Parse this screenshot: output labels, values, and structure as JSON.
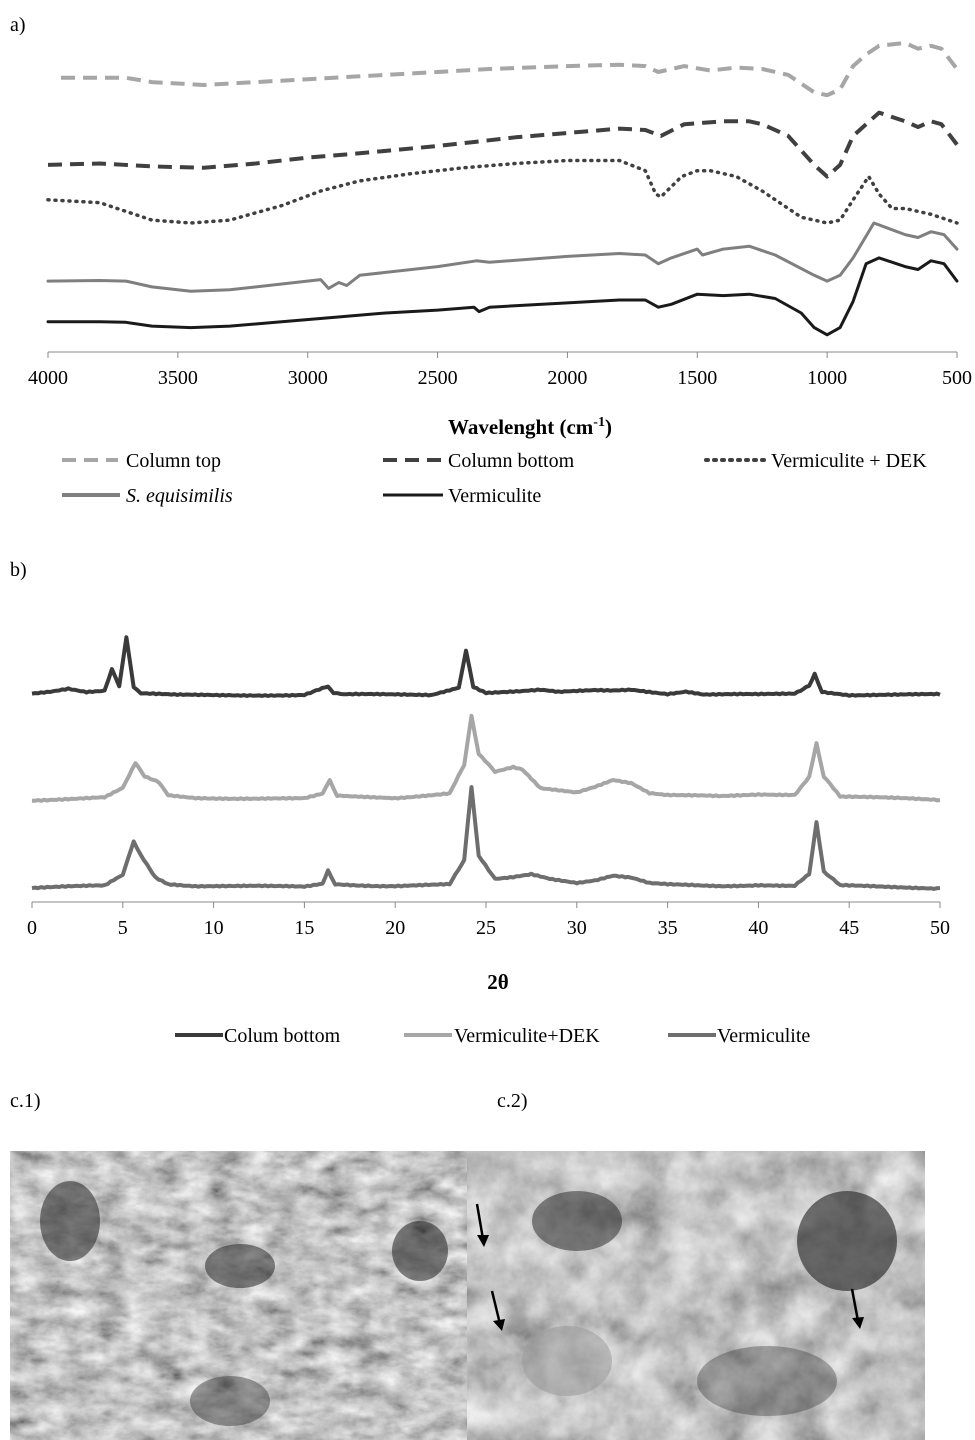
{
  "panels": {
    "a": "a)",
    "b": "b)",
    "c1": "c.1)",
    "c2": "c.2)"
  },
  "chart_data": [
    {
      "type": "line",
      "panel": "a)",
      "xlabel_main": "Wavelenght (cm",
      "xlabel_sup": "-1",
      "xlabel_end": ")",
      "ylabel": "",
      "xlim": [
        4000,
        500
      ],
      "x_reversed": true,
      "y_axis_shown": false,
      "xticks": [
        4000,
        3500,
        3000,
        2500,
        2000,
        1500,
        1000,
        500
      ],
      "legend_position": "bottom",
      "series": [
        {
          "name": "Column top",
          "style": "dashed",
          "color": "#a6a6a6",
          "x": [
            3950,
            3700,
            3600,
            3400,
            3200,
            3000,
            2800,
            2500,
            2300,
            2000,
            1800,
            1700,
            1650,
            1550,
            1450,
            1350,
            1250,
            1150,
            1050,
            1000,
            950,
            900,
            850,
            800,
            700,
            650,
            600,
            560,
            500
          ],
          "y": [
            0.92,
            0.92,
            0.905,
            0.895,
            0.905,
            0.915,
            0.925,
            0.94,
            0.95,
            0.96,
            0.965,
            0.96,
            0.94,
            0.96,
            0.945,
            0.955,
            0.95,
            0.93,
            0.87,
            0.86,
            0.88,
            0.96,
            1.0,
            1.03,
            1.04,
            1.02,
            1.03,
            1.02,
            0.95
          ]
        },
        {
          "name": "Column bottom",
          "style": "dashed",
          "color": "#404040",
          "x": [
            4000,
            3800,
            3600,
            3400,
            3200,
            3000,
            2800,
            2500,
            2350,
            2200,
            2000,
            1800,
            1700,
            1640,
            1550,
            1400,
            1300,
            1250,
            1150,
            1050,
            1000,
            950,
            900,
            800,
            700,
            650,
            600,
            560,
            500
          ],
          "y": [
            0.62,
            0.625,
            0.615,
            0.61,
            0.625,
            0.645,
            0.66,
            0.685,
            0.7,
            0.715,
            0.73,
            0.745,
            0.74,
            0.72,
            0.76,
            0.77,
            0.77,
            0.76,
            0.72,
            0.62,
            0.58,
            0.62,
            0.72,
            0.8,
            0.77,
            0.75,
            0.77,
            0.76,
            0.69
          ]
        },
        {
          "name": "Vermiculite + DEK",
          "style": "dotted",
          "color": "#404040",
          "x": [
            4000,
            3800,
            3700,
            3600,
            3450,
            3300,
            3100,
            2950,
            2800,
            2600,
            2400,
            2200,
            2000,
            1800,
            1700,
            1660,
            1640,
            1560,
            1500,
            1450,
            1350,
            1250,
            1100,
            1000,
            950,
            900,
            840,
            800,
            750,
            700,
            600,
            500
          ],
          "y": [
            0.5,
            0.49,
            0.46,
            0.43,
            0.42,
            0.43,
            0.48,
            0.53,
            0.565,
            0.59,
            0.61,
            0.625,
            0.635,
            0.635,
            0.6,
            0.52,
            0.51,
            0.58,
            0.6,
            0.6,
            0.58,
            0.53,
            0.44,
            0.42,
            0.43,
            0.5,
            0.58,
            0.52,
            0.47,
            0.47,
            0.45,
            0.42
          ]
        },
        {
          "name": "S. equisimilis",
          "style": "solid",
          "color": "#7f7f7f",
          "x": [
            4000,
            3800,
            3700,
            3600,
            3450,
            3300,
            3100,
            2950,
            2920,
            2880,
            2850,
            2800,
            2500,
            2350,
            2300,
            2000,
            1800,
            1700,
            1650,
            1600,
            1500,
            1480,
            1400,
            1300,
            1200,
            1050,
            1000,
            950,
            900,
            820,
            700,
            650,
            600,
            550,
            500
          ],
          "y": [
            0.22,
            0.222,
            0.22,
            0.2,
            0.185,
            0.19,
            0.21,
            0.225,
            0.195,
            0.215,
            0.205,
            0.24,
            0.27,
            0.29,
            0.285,
            0.305,
            0.315,
            0.31,
            0.28,
            0.3,
            0.33,
            0.31,
            0.33,
            0.34,
            0.31,
            0.24,
            0.22,
            0.24,
            0.3,
            0.42,
            0.38,
            0.37,
            0.39,
            0.38,
            0.33
          ]
        },
        {
          "name": "Vermiculite",
          "style": "solid",
          "color": "#1a1a1a",
          "x": [
            4000,
            3800,
            3700,
            3600,
            3450,
            3300,
            3100,
            2900,
            2700,
            2500,
            2360,
            2340,
            2300,
            2000,
            1800,
            1700,
            1650,
            1600,
            1500,
            1400,
            1300,
            1200,
            1100,
            1050,
            1000,
            950,
            900,
            850,
            800,
            700,
            650,
            600,
            550,
            500
          ],
          "y": [
            0.08,
            0.08,
            0.078,
            0.065,
            0.06,
            0.065,
            0.08,
            0.095,
            0.11,
            0.12,
            0.13,
            0.115,
            0.13,
            0.145,
            0.155,
            0.155,
            0.13,
            0.14,
            0.175,
            0.17,
            0.175,
            0.16,
            0.11,
            0.06,
            0.035,
            0.06,
            0.15,
            0.28,
            0.3,
            0.27,
            0.26,
            0.29,
            0.28,
            0.22
          ]
        }
      ]
    },
    {
      "type": "line",
      "panel": "b)",
      "xlabel": "2θ",
      "ylabel": "",
      "xlim": [
        0,
        50
      ],
      "y_axis_shown": false,
      "xticks": [
        0,
        5,
        10,
        15,
        20,
        25,
        30,
        35,
        40,
        45,
        50
      ],
      "legend_position": "bottom",
      "series": [
        {
          "name": "Colum bottom",
          "color": "#3a3a3a",
          "x": [
            0,
            1,
            2,
            3,
            4,
            4.4,
            4.8,
            5.2,
            5.6,
            6,
            8,
            10,
            15,
            16.3,
            16.6,
            17,
            22,
            23.5,
            23.9,
            24.3,
            25,
            27,
            28,
            29,
            30,
            31,
            32,
            33,
            35,
            36,
            37,
            40,
            42,
            42.8,
            43.1,
            43.5,
            45,
            50
          ],
          "y": [
            0.04,
            0.06,
            0.09,
            0.06,
            0.07,
            0.26,
            0.1,
            0.56,
            0.1,
            0.04,
            0.025,
            0.025,
            0.03,
            0.1,
            0.04,
            0.03,
            0.03,
            0.1,
            0.43,
            0.1,
            0.05,
            0.06,
            0.07,
            0.05,
            0.06,
            0.07,
            0.07,
            0.08,
            0.04,
            0.06,
            0.03,
            0.03,
            0.04,
            0.12,
            0.22,
            0.06,
            0.03,
            0.03
          ]
        }
      ]
    },
    {
      "type": "line",
      "series": [
        {
          "name": "Vermiculite+DEK",
          "color": "#a6a6a6",
          "x": [
            0,
            4,
            5,
            5.7,
            6.2,
            7,
            7.5,
            9,
            15,
            16,
            16.4,
            16.8,
            20,
            23,
            23.8,
            24.2,
            24.6,
            25.5,
            26.5,
            27,
            28,
            30,
            31,
            32,
            33,
            34,
            35,
            38,
            40,
            42,
            42.8,
            43.2,
            43.6,
            44.5,
            50
          ],
          "y": [
            0.0,
            0.02,
            0.1,
            0.32,
            0.2,
            0.15,
            0.04,
            0.02,
            0.01,
            0.05,
            0.18,
            0.04,
            0.02,
            0.06,
            0.3,
            0.74,
            0.4,
            0.24,
            0.28,
            0.26,
            0.1,
            0.07,
            0.12,
            0.18,
            0.15,
            0.06,
            0.04,
            0.03,
            0.05,
            0.05,
            0.2,
            0.5,
            0.2,
            0.03,
            0.0
          ]
        }
      ]
    },
    {
      "type": "line",
      "series": [
        {
          "name": "Vermiculite",
          "color": "#6e6e6e",
          "x": [
            0,
            4,
            5,
            5.6,
            6,
            6.8,
            7.5,
            9,
            15,
            16,
            16.3,
            16.7,
            20,
            23,
            23.8,
            24.2,
            24.6,
            25.5,
            26.5,
            27.5,
            28.5,
            30,
            31,
            32,
            33,
            34,
            35,
            38,
            40,
            42,
            42.8,
            43.2,
            43.6,
            44.5,
            50
          ],
          "y": [
            0.0,
            0.02,
            0.12,
            0.43,
            0.3,
            0.1,
            0.04,
            0.02,
            0.01,
            0.04,
            0.17,
            0.03,
            0.02,
            0.03,
            0.25,
            0.91,
            0.3,
            0.08,
            0.1,
            0.13,
            0.09,
            0.05,
            0.07,
            0.11,
            0.09,
            0.04,
            0.03,
            0.02,
            0.03,
            0.02,
            0.12,
            0.6,
            0.15,
            0.02,
            0.0
          ]
        }
      ]
    }
  ],
  "sem_images": {
    "c1": "c.1)",
    "c2": "c.2)"
  }
}
